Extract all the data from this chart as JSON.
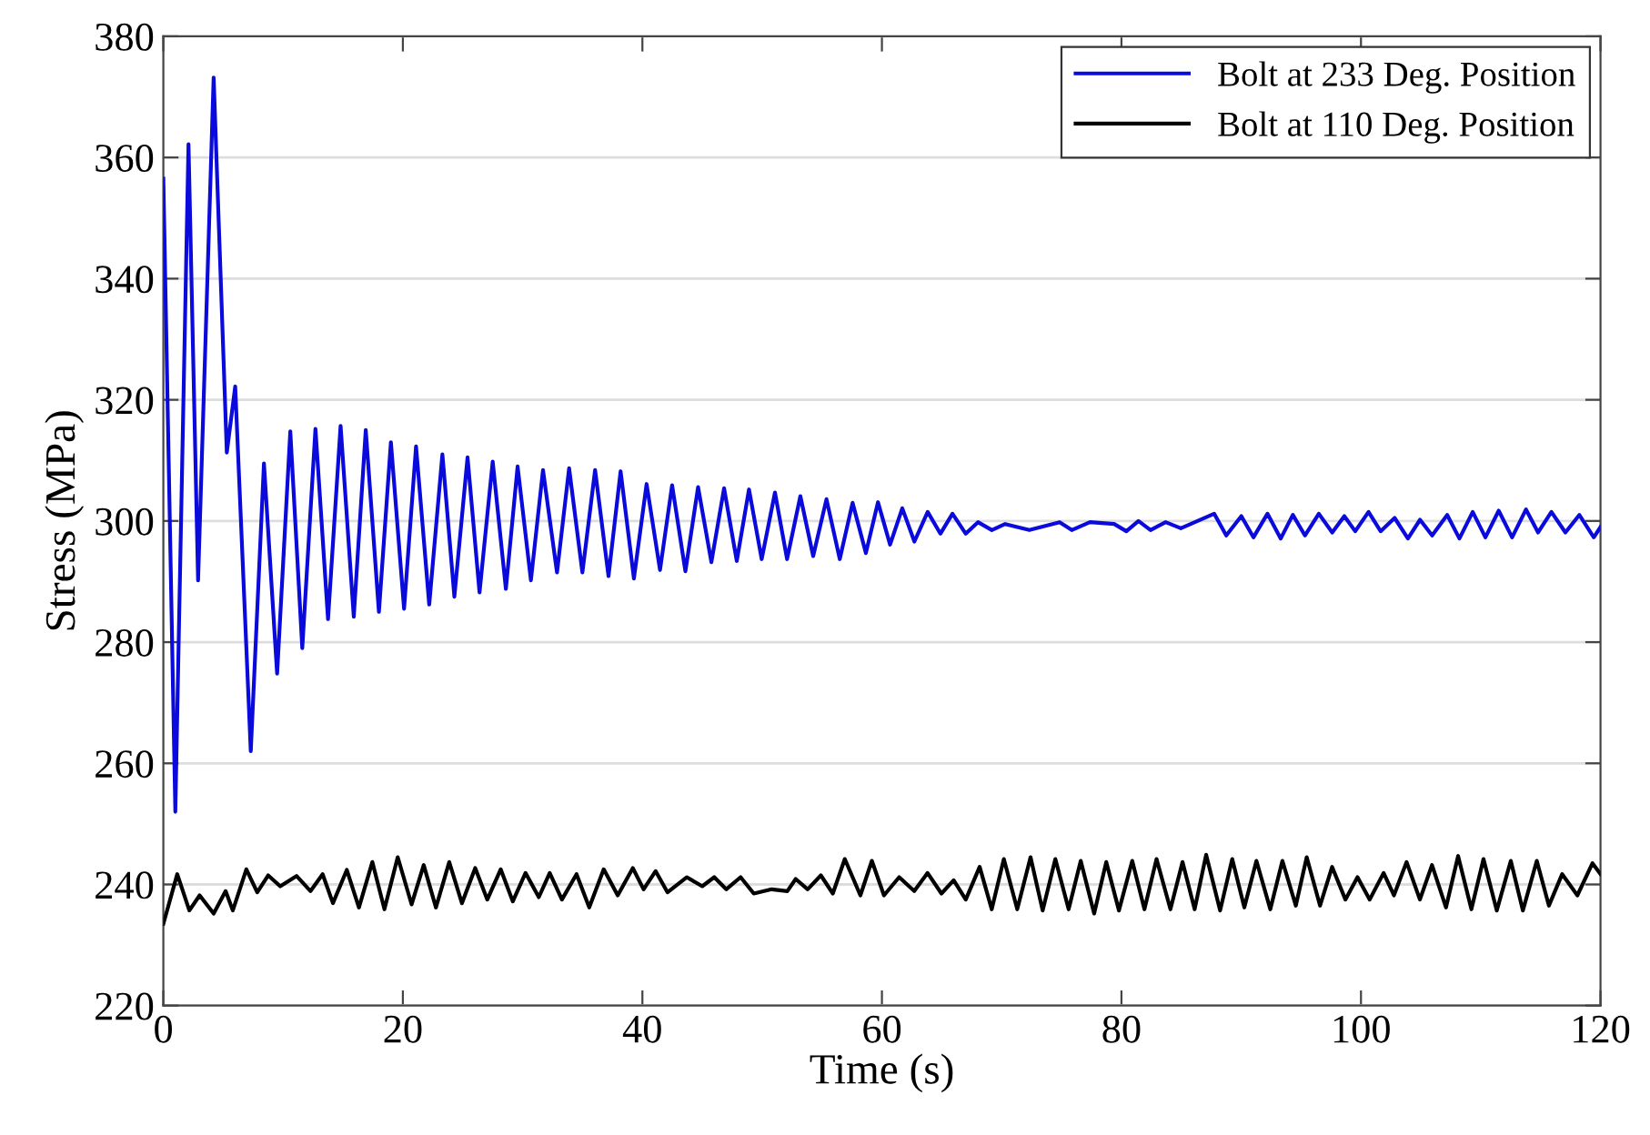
{
  "chart_data": {
    "type": "line",
    "xlabel": "Time (s)",
    "ylabel": "Stress (MPa)",
    "xlim": [
      0,
      120
    ],
    "ylim": [
      220,
      380
    ],
    "xticks": [
      0,
      20,
      40,
      60,
      80,
      100,
      120
    ],
    "yticks": [
      220,
      240,
      260,
      280,
      300,
      320,
      340,
      360,
      380
    ],
    "grid": "y",
    "legend": "top right",
    "line_style": "solid",
    "marker": "none",
    "series": [
      {
        "name": "Bolt at 233 Deg. Position",
        "color": "#0a0adc",
        "x": [
          0,
          1.0,
          2.1,
          2.9,
          4.2,
          5.3,
          6.0,
          7.3,
          8.4,
          9.5,
          10.6,
          11.6,
          12.7,
          13.75,
          14.8,
          15.9,
          16.9,
          18.0,
          19.0,
          20.1,
          21.1,
          22.2,
          23.3,
          24.3,
          25.4,
          26.4,
          27.5,
          28.6,
          29.58,
          30.69,
          31.7,
          32.87,
          33.88,
          34.99,
          36.05,
          37.17,
          38.18,
          39.29,
          40.35,
          41.47,
          42.48,
          43.59,
          44.65,
          45.76,
          46.82,
          47.88,
          48.9,
          49.96,
          51.07,
          52.08,
          53.19,
          54.26,
          55.37,
          56.48,
          57.55,
          58.66,
          59.67,
          60.68,
          61.7,
          62.71,
          63.82,
          64.88,
          65.89,
          67.0,
          68.02,
          69.18,
          70.29,
          72.31,
          74.84,
          75.85,
          77.37,
          79.39,
          80.41,
          81.42,
          82.43,
          83.69,
          84.96,
          87.74,
          88.75,
          90.01,
          91.02,
          92.19,
          93.3,
          94.31,
          95.32,
          96.48,
          97.6,
          98.61,
          99.52,
          100.63,
          101.64,
          102.81,
          103.92,
          104.93,
          105.94,
          107.2,
          108.22,
          109.33,
          110.39,
          111.5,
          112.62,
          113.78,
          114.79,
          115.9,
          117.07,
          118.23,
          119.44,
          120
        ],
        "values": [
          356.5,
          252,
          362.2,
          290.2,
          373.2,
          311.3,
          322.2,
          262,
          309.5,
          274.8,
          314.8,
          279,
          315.2,
          283.8,
          315.7,
          284.2,
          315,
          285,
          313,
          285.5,
          312.3,
          286.2,
          311,
          287.5,
          310.5,
          288.2,
          309.8,
          288.8,
          309.0,
          290.2,
          308.4,
          291.5,
          308.7,
          291.5,
          308.4,
          290.9,
          308.2,
          290.5,
          306.1,
          291.9,
          305.9,
          291.7,
          305.6,
          293.2,
          305.4,
          293.4,
          305.2,
          293.7,
          304.7,
          293.7,
          304.1,
          294.2,
          303.6,
          293.7,
          303.0,
          294.7,
          303.1,
          296.1,
          302.1,
          296.6,
          301.5,
          297.9,
          301.2,
          297.9,
          299.8,
          298.5,
          299.5,
          298.5,
          299.8,
          298.5,
          299.8,
          299.5,
          298.3,
          300,
          298.5,
          299.8,
          298.8,
          301.2,
          297.6,
          300.8,
          297.3,
          301.2,
          297.1,
          301,
          297.6,
          301.2,
          298.1,
          300.8,
          298.3,
          301.5,
          298.3,
          300.5,
          297.1,
          300.2,
          297.6,
          301,
          297.1,
          301.5,
          297.3,
          301.7,
          297.3,
          301.9,
          298.1,
          301.5,
          298.1,
          301,
          297.3,
          299
        ]
      },
      {
        "name": "Bolt at 110 Deg. Position",
        "color": "#000000",
        "x": [
          0,
          1.16,
          2.17,
          3.03,
          4.2,
          5.2,
          5.8,
          6.93,
          7.84,
          8.75,
          9.76,
          11.12,
          12.29,
          13.3,
          14.16,
          15.32,
          16.33,
          17.45,
          18.46,
          19.57,
          20.73,
          21.74,
          22.76,
          23.87,
          24.93,
          26.04,
          27.05,
          28.17,
          29.18,
          30.24,
          31.35,
          32.26,
          33.28,
          34.5,
          35.56,
          36.77,
          37.94,
          39.2,
          40.1,
          41.1,
          42.1,
          43.7,
          45.0,
          46.0,
          47.0,
          48.2,
          49.3,
          50.8,
          52.1,
          52.8,
          53.8,
          54.9,
          55.9,
          56.9,
          58.2,
          59.16,
          60.17,
          61.44,
          62.7,
          63.81,
          64.97,
          65.99,
          67.0,
          68.16,
          69.17,
          70.18,
          71.3,
          72.41,
          73.42,
          74.48,
          75.59,
          76.6,
          77.72,
          78.73,
          79.79,
          80.9,
          81.92,
          82.93,
          84.09,
          85.1,
          86.11,
          87.07,
          88.24,
          89.25,
          90.26,
          91.27,
          92.43,
          93.44,
          94.56,
          95.47,
          96.58,
          97.59,
          98.7,
          99.71,
          100.73,
          101.89,
          102.75,
          103.81,
          104.92,
          105.93,
          107.1,
          108.11,
          109.22,
          110.23,
          111.34,
          112.51,
          113.52,
          114.68,
          115.69,
          116.8,
          118.07,
          119.33,
          120
        ],
        "values": [
          233.5,
          241.7,
          235.7,
          238.2,
          235.2,
          238.9,
          235.7,
          242.5,
          238.7,
          241.5,
          239.7,
          241.4,
          238.9,
          241.7,
          236.9,
          242.4,
          236.2,
          243.7,
          235.9,
          244.5,
          236.7,
          243.2,
          236.2,
          243.7,
          236.9,
          242.7,
          237.5,
          242.5,
          237.2,
          241.9,
          237.9,
          241.9,
          237.5,
          241.7,
          236.2,
          242.5,
          238.2,
          242.7,
          239.2,
          242.2,
          238.7,
          241.2,
          239.7,
          241.2,
          239.2,
          241.2,
          238.5,
          239.2,
          238.9,
          240.9,
          239.2,
          241.5,
          238.5,
          244.2,
          238.2,
          243.9,
          238.2,
          241.2,
          238.9,
          241.9,
          238.5,
          240.7,
          237.5,
          242.9,
          235.9,
          244.2,
          235.9,
          244.5,
          235.7,
          244.2,
          235.9,
          243.9,
          235.2,
          243.7,
          235.7,
          243.9,
          235.9,
          244.2,
          235.9,
          243.7,
          235.9,
          244.9,
          235.7,
          244.2,
          236.2,
          243.9,
          235.9,
          243.9,
          236.5,
          244.5,
          236.5,
          242.9,
          237.5,
          241.2,
          237.5,
          241.9,
          238.2,
          243.7,
          237.5,
          243.2,
          236.2,
          244.7,
          235.9,
          244.2,
          235.7,
          243.9,
          235.7,
          243.9,
          236.5,
          241.7,
          238.2,
          243.5,
          241.7
        ]
      }
    ]
  }
}
